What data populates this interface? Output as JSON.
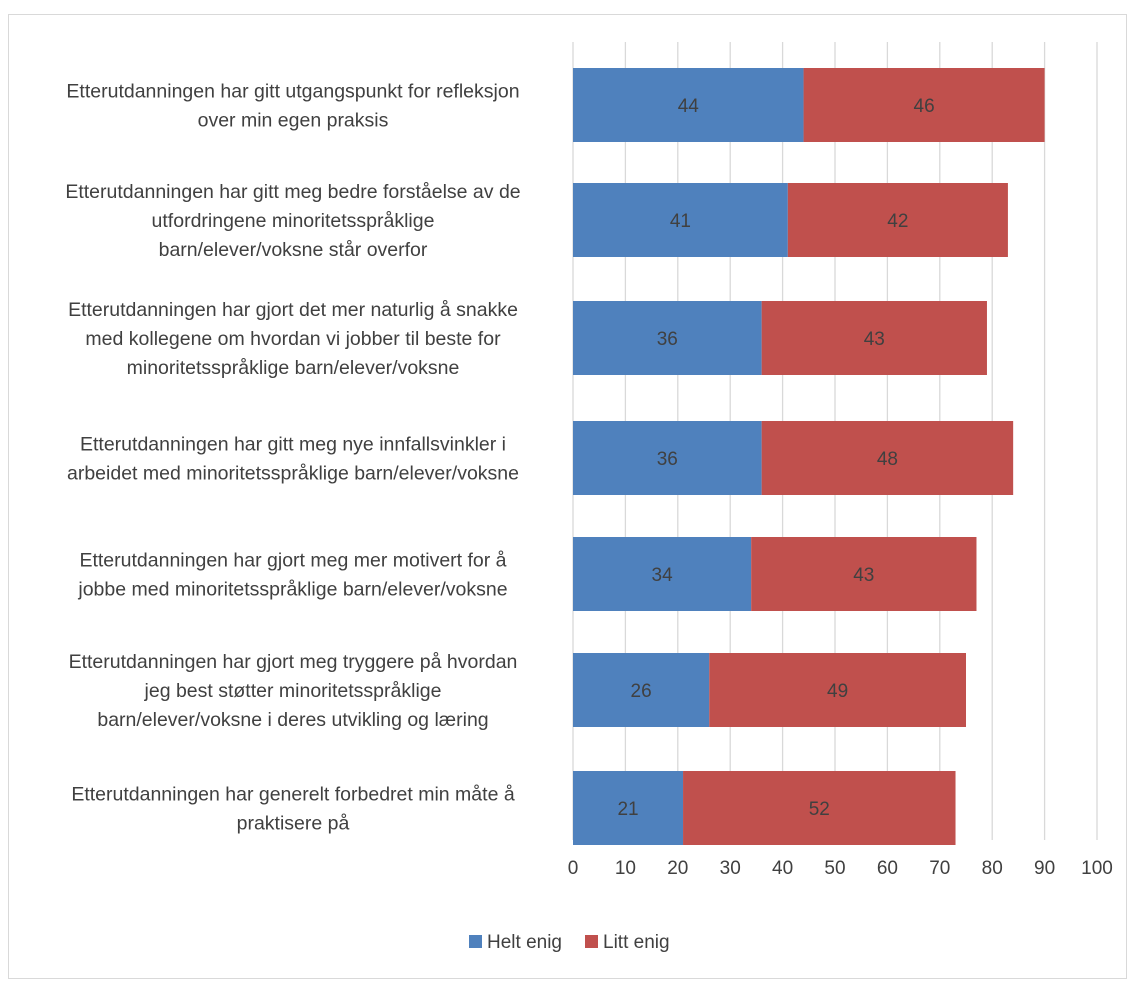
{
  "chart_data": {
    "type": "bar",
    "orientation": "horizontal",
    "stacked": true,
    "categories": [
      [
        "Etterutdanningen har gitt utgangspunkt for refleksjon",
        "over min egen praksis"
      ],
      [
        "Etterutdanningen har gitt meg bedre forståelse av de",
        "utfordringene minoritetsspråklige",
        "barn/elever/voksne står overfor"
      ],
      [
        "Etterutdanningen har gjort det mer naturlig å snakke",
        "med kollegene om hvordan vi jobber til beste for",
        "minoritetsspråklige barn/elever/voksne"
      ],
      [
        "Etterutdanningen har gitt meg nye innfallsvinkler i",
        "arbeidet med minoritetsspråklige barn/elever/voksne"
      ],
      [
        "Etterutdanningen har gjort meg mer motivert for å",
        "jobbe med minoritetsspråklige barn/elever/voksne"
      ],
      [
        "Etterutdanningen har gjort meg tryggere på hvordan",
        "jeg best støtter minoritetsspråklige",
        "barn/elever/voksne i deres utvikling og læring"
      ],
      [
        "Etterutdanningen har generelt forbedret min måte å",
        "praktisere på"
      ]
    ],
    "series": [
      {
        "name": "Helt enig",
        "color": "#4f81bd",
        "values": [
          44,
          41,
          36,
          36,
          34,
          26,
          21
        ]
      },
      {
        "name": "Litt enig",
        "color": "#c0504d",
        "values": [
          46,
          42,
          43,
          48,
          43,
          49,
          52
        ]
      }
    ],
    "xlim": [
      0,
      100
    ],
    "xticks": [
      0,
      10,
      20,
      30,
      40,
      50,
      60,
      70,
      80,
      90,
      100
    ],
    "grid": true,
    "legend": "bottom",
    "gridColor": "#d9d9d9",
    "textColor": "#404040"
  }
}
